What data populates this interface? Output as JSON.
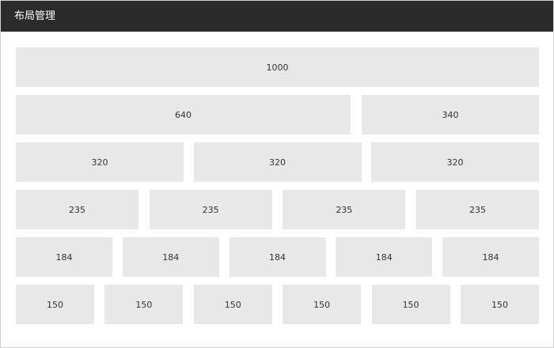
{
  "header": {
    "title": "布局管理"
  },
  "rows": [
    [
      "1000"
    ],
    [
      "640",
      "340"
    ],
    [
      "320",
      "320",
      "320"
    ],
    [
      "235",
      "235",
      "235",
      "235"
    ],
    [
      "184",
      "184",
      "184",
      "184",
      "184"
    ],
    [
      "150",
      "150",
      "150",
      "150",
      "150",
      "150"
    ]
  ]
}
